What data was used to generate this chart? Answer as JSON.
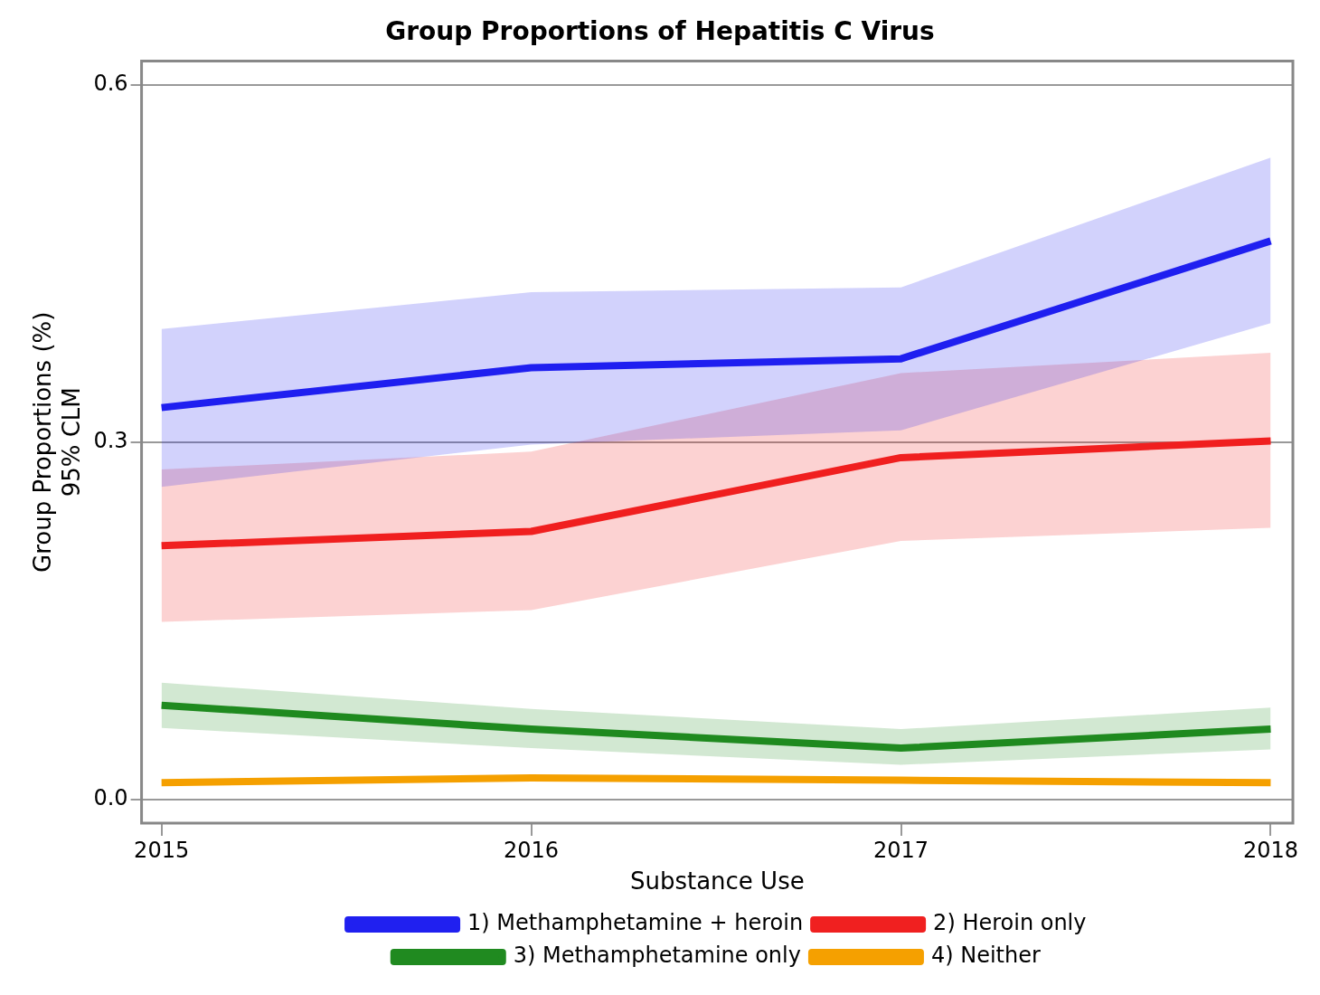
{
  "chart_data": {
    "type": "line",
    "title": "Group Proportions of Hepatitis C Virus",
    "ylabel": "Group Proportions (%)\n95% CLM",
    "legend_title": "Substance Use",
    "legend": "bottom",
    "grid": "y",
    "x": [
      2015,
      2016,
      2017,
      2018
    ],
    "xlim": [
      2014.946,
      2018.06
    ],
    "xticks": [
      2015,
      2016,
      2017,
      2018
    ],
    "ylim": [
      -0.02,
      0.62
    ],
    "yticks": [
      {
        "value": 0,
        "label": "0.0"
      },
      0.3,
      0.6
    ],
    "line_style": "solid",
    "marker": "none",
    "series": [
      {
        "name": "1) Methamphetamine + heroin",
        "color": "#2020f0",
        "values": [
          0.329,
          0.3625,
          0.37,
          0.469
        ],
        "lower": [
          0.2625,
          0.298,
          0.31,
          0.4
        ],
        "upper": [
          0.395,
          0.426,
          0.43,
          0.539
        ]
      },
      {
        "name": "2) Heroin only",
        "color": "#f02020",
        "values": [
          0.213,
          0.225,
          0.287,
          0.301
        ],
        "lower": [
          0.149,
          0.159,
          0.217,
          0.228
        ],
        "upper": [
          0.277,
          0.292,
          0.358,
          0.375
        ]
      },
      {
        "name": "3) Methamphetamine only",
        "color": "#208a20",
        "values": [
          0.079,
          0.059,
          0.043,
          0.059
        ],
        "lower": [
          0.06,
          0.043,
          0.029,
          0.042
        ],
        "upper": [
          0.098,
          0.076,
          0.059,
          0.077
        ]
      },
      {
        "name": "4) Neither",
        "color": "#f5a000",
        "values": [
          0.014,
          0.018,
          0.016,
          0.014
        ]
      }
    ]
  }
}
